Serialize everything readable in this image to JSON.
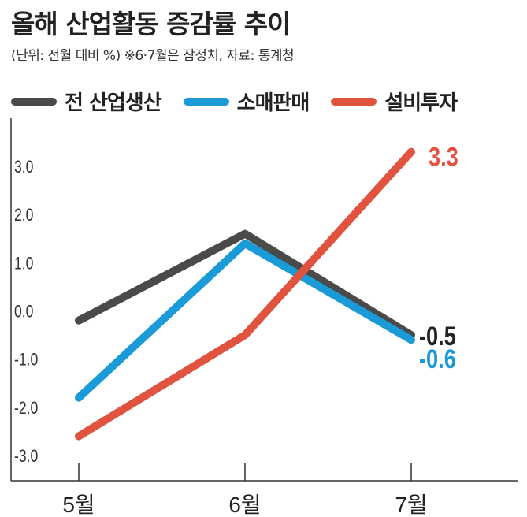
{
  "title": "올해 산업활동 증감률 추이",
  "subtitle": "(단위: 전월 대비 %) ※6·7월은 잠정치, 자료: 통계청",
  "legend": {
    "s0": "전 산업생산",
    "s1": "소매판매",
    "s2": "설비투자"
  },
  "chart_data": {
    "type": "line",
    "title": "올해 산업활동 증감률 추이",
    "xlabel": "",
    "ylabel": "전월 대비 %",
    "categories": [
      "5월",
      "6월",
      "7월"
    ],
    "ylim": [
      -3.0,
      3.0
    ],
    "yticks": [
      -3.0,
      -2.0,
      -1.0,
      0.0,
      1.0,
      2.0,
      3.0
    ],
    "ytick_labels": [
      "-3.0",
      "-2.0",
      "-1.0",
      "0.0",
      "1.0",
      "2.0",
      "3.0"
    ],
    "series": [
      {
        "name": "전 산업생산",
        "color": "#4a4a4a",
        "values": [
          -0.2,
          1.6,
          -0.5
        ],
        "end_label": "-0.5",
        "end_label_color": "#222222"
      },
      {
        "name": "소매판매",
        "color": "#1a9ad6",
        "values": [
          -1.8,
          1.4,
          -0.6
        ],
        "end_label": "-0.6",
        "end_label_color": "#1a9ad6"
      },
      {
        "name": "설비투자",
        "color": "#e0533f",
        "values": [
          -2.6,
          -0.5,
          3.3
        ],
        "end_label": "3.3",
        "end_label_color": "#e0533f"
      }
    ]
  }
}
